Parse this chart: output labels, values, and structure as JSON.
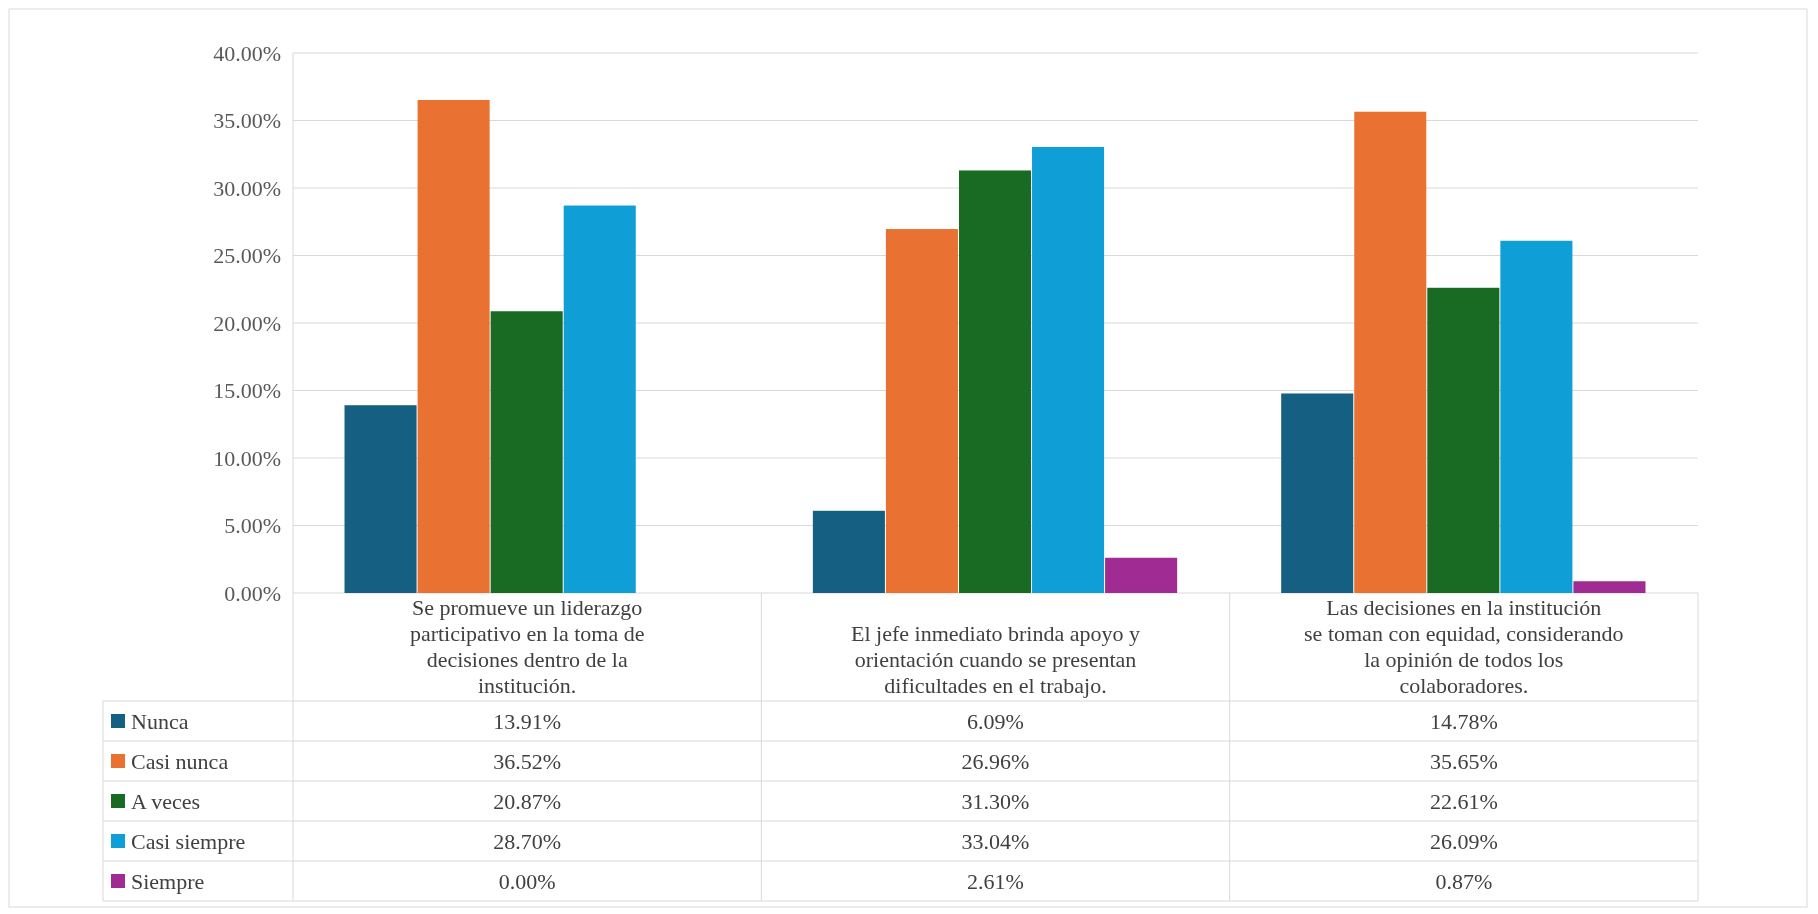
{
  "chart_data": {
    "type": "bar",
    "categories": [
      "Se promueve un liderazgo participativo en la toma de decisiones dentro de la institución.",
      "El jefe inmediato brinda apoyo y orientación cuando se presentan dificultades en el trabajo.",
      "Las decisiones en la institución se toman con equidad, considerando la opinión de todos los colaboradores."
    ],
    "series": [
      {
        "name": "Nunca",
        "color": "#156082",
        "values": [
          13.91,
          6.09,
          14.78
        ],
        "value_labels": [
          "13.91%",
          "6.09%",
          "14.78%"
        ]
      },
      {
        "name": "Casi nunca",
        "color": "#e97132",
        "values": [
          36.52,
          26.96,
          35.65
        ],
        "value_labels": [
          "36.52%",
          "26.96%",
          "35.65%"
        ]
      },
      {
        "name": "A veces",
        "color": "#196b24",
        "values": [
          20.87,
          31.3,
          22.61
        ],
        "value_labels": [
          "20.87%",
          "31.30%",
          "22.61%"
        ]
      },
      {
        "name": "Casi siempre",
        "color": "#0f9ed5",
        "values": [
          28.7,
          33.04,
          26.09
        ],
        "value_labels": [
          "28.70%",
          "33.04%",
          "26.09%"
        ]
      },
      {
        "name": "Siempre",
        "color": "#a02b93",
        "values": [
          0.0,
          2.61,
          0.87
        ],
        "value_labels": [
          "0.00%",
          "2.61%",
          "0.87%"
        ]
      }
    ],
    "ylim": [
      0,
      40
    ],
    "yticks": [
      {
        "value": 0,
        "label": "0.00%"
      },
      {
        "value": 5,
        "label": "5.00%"
      },
      {
        "value": 10,
        "label": "10.00%"
      },
      {
        "value": 15,
        "label": "15.00%"
      },
      {
        "value": 20,
        "label": "20.00%"
      },
      {
        "value": 25,
        "label": "25.00%"
      },
      {
        "value": 30,
        "label": "30.00%"
      },
      {
        "value": 35,
        "label": "35.00%"
      },
      {
        "value": 40,
        "label": "40.00%"
      }
    ],
    "grid": "y",
    "legend": "bottom"
  }
}
